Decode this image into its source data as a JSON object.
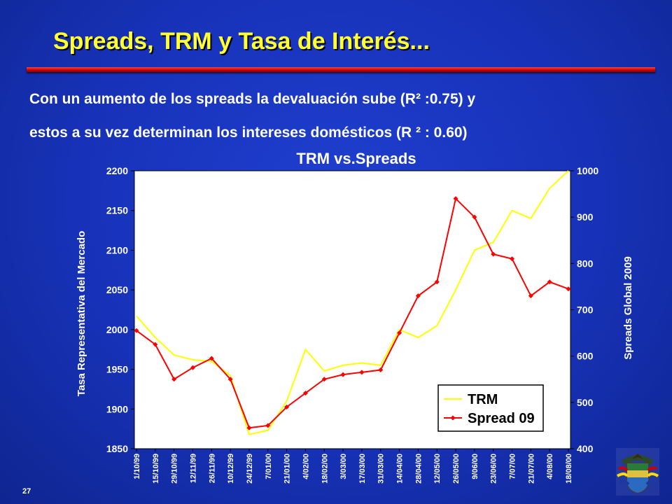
{
  "slide": {
    "title": "Spreads, TRM y Tasa de Interés...",
    "subtitle_line1": "Con un aumento de los spreads la devaluación sube (R² :0.75) y",
    "subtitle_line2": "estos a su vez determinan los intereses domésticos (R ² : 0.60)",
    "slide_number": "27"
  },
  "colors": {
    "background": "#1732b8",
    "title": "#ffff33",
    "rule": "#cc0000",
    "trm_line": "#ffff00",
    "spread_line": "#ff0000"
  },
  "chart_data": {
    "type": "line",
    "title": "TRM vs.Spreads",
    "ylabel": "Tasa Representativa del Mercado",
    "y2label": "Spreads Global 2009",
    "ylim": [
      1850,
      2200
    ],
    "yticks": [
      1850,
      1900,
      1950,
      2000,
      2050,
      2100,
      2150,
      2200
    ],
    "y2lim": [
      400,
      1000
    ],
    "y2ticks": [
      400,
      500,
      600,
      700,
      800,
      900,
      1000
    ],
    "grid": false,
    "legend_position": "lower-right",
    "categories": [
      "1/10/99",
      "15/10/99",
      "29/10/99",
      "12/11/99",
      "26/11/99",
      "10/12/99",
      "24/12/99",
      "7/01/00",
      "21/01/00",
      "4/02/00",
      "18/02/00",
      "3/03/00",
      "17/03/00",
      "31/03/00",
      "14/04/00",
      "28/04/00",
      "12/05/00",
      "26/05/00",
      "9/06/00",
      "23/06/00",
      "7/07/00",
      "21/07/00",
      "4/08/00",
      "18/08/00"
    ],
    "series": [
      {
        "name": "TRM",
        "axis": "left",
        "values": [
          2017,
          1990,
          1968,
          1962,
          1960,
          1942,
          1868,
          1873,
          1910,
          1975,
          1948,
          1955,
          1958,
          1955,
          2000,
          1990,
          2005,
          2050,
          2100,
          2110,
          2150,
          2140,
          2178,
          2200
        ]
      },
      {
        "name": "Spread 09",
        "axis": "right",
        "values": [
          655,
          625,
          550,
          575,
          595,
          550,
          445,
          450,
          490,
          520,
          550,
          560,
          565,
          570,
          650,
          730,
          760,
          940,
          900,
          820,
          810,
          730,
          760,
          745
        ]
      }
    ]
  }
}
